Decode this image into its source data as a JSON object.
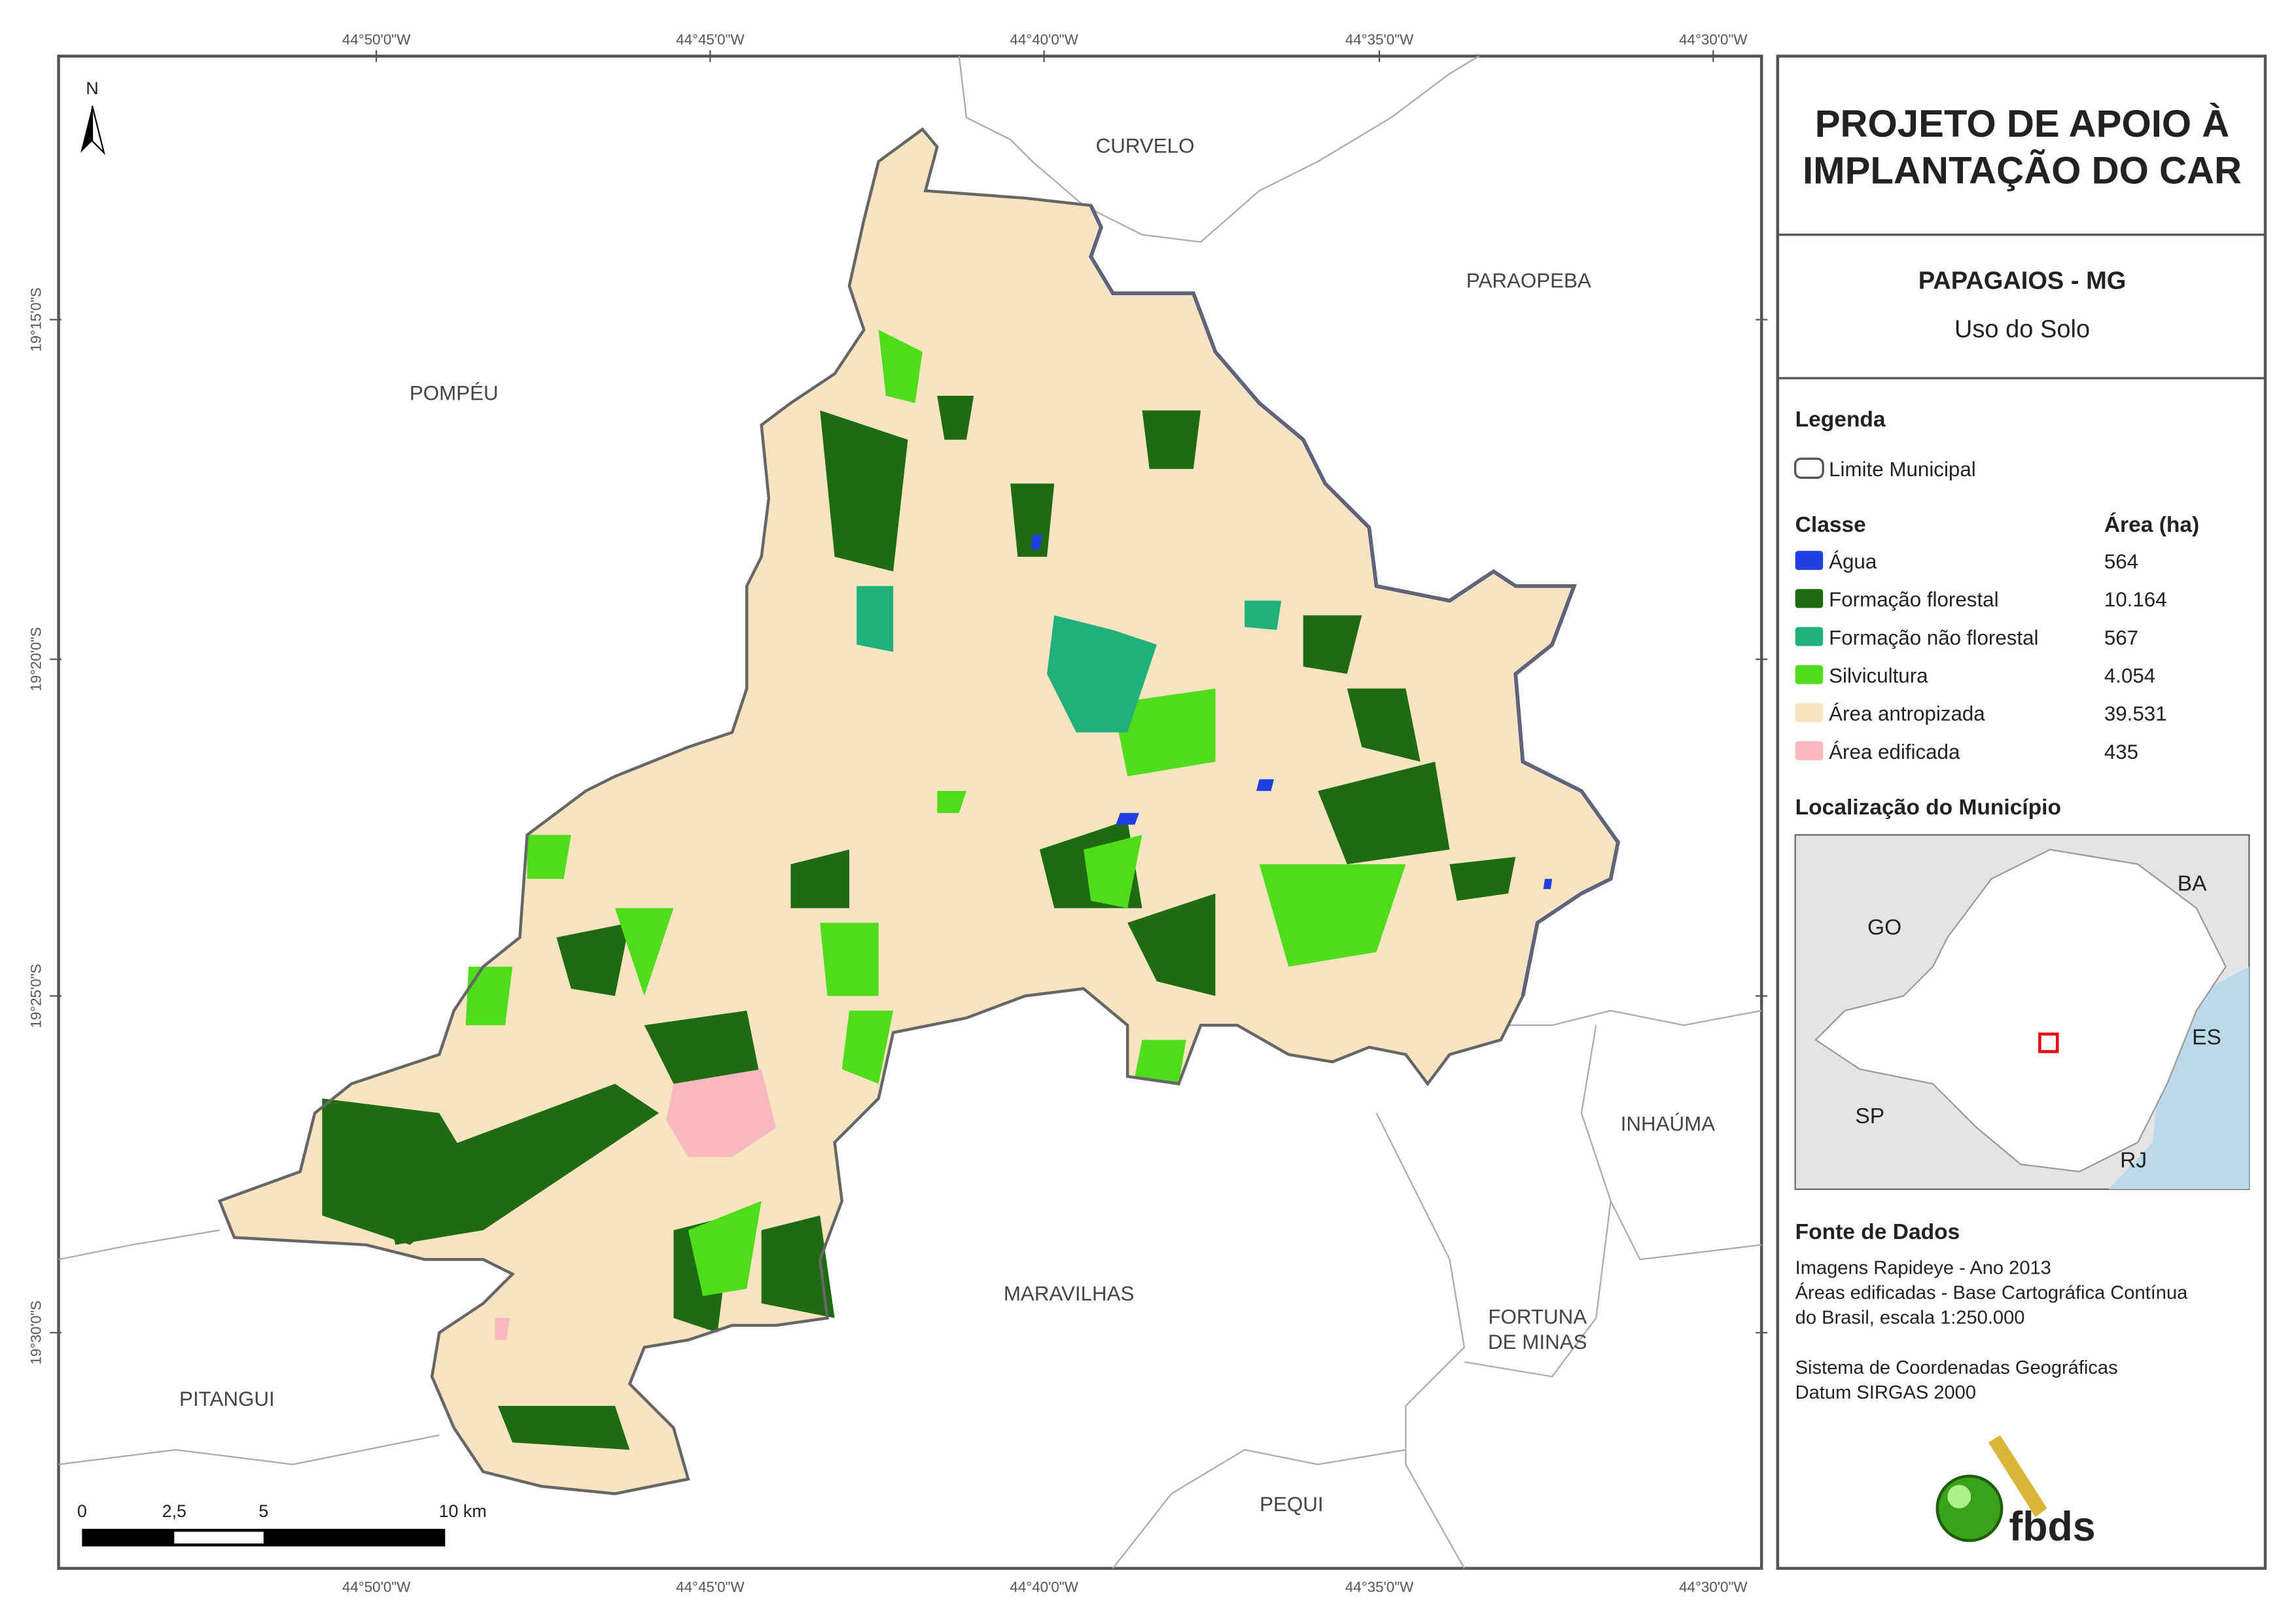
{
  "map": {
    "longitudes": [
      "44°50'0\"W",
      "44°45'0\"W",
      "44°40'0\"W",
      "44°35'0\"W",
      "44°30'0\"W"
    ],
    "latitudes": [
      "19°15'0\"S",
      "19°20'0\"S",
      "19°25'0\"S",
      "19°30'0\"S"
    ],
    "places": [
      "CURVELO",
      "PARAOPEBA",
      "POMPÉU",
      "INHAÚMA",
      "MARAVILHAS",
      "FORTUNA",
      "DE MINAS",
      "PITANGUI",
      "PEQUI"
    ],
    "north": "N",
    "scale": [
      "0",
      "2,5",
      "5",
      "10 km"
    ]
  },
  "panel": {
    "title": [
      "PROJETO DE APOIO À",
      "IMPLANTAÇÃO DO CAR"
    ],
    "municipality": "PAPAGAIOS - MG",
    "subtitle": "Uso do Solo",
    "legend_title": "Legenda",
    "boundary": "Limite Municipal",
    "class_header": "Classe",
    "area_header": "Área (ha)",
    "classes": [
      {
        "name": "Água",
        "color": "#1f3fe0",
        "area": "564"
      },
      {
        "name": "Formação florestal",
        "color": "#1e6b12",
        "area": "10.164"
      },
      {
        "name": "Formação não florestal",
        "color": "#1fb07c",
        "area": "567"
      },
      {
        "name": "Silvicultura",
        "color": "#4fdc1a",
        "area": "4.054"
      },
      {
        "name": "Área antropizada",
        "color": "#f8e4c0",
        "area": "39.531"
      },
      {
        "name": "Área edificada",
        "color": "#f7b8c0",
        "area": "435"
      }
    ],
    "location_title": "Localização do Município",
    "states": [
      "GO",
      "BA",
      "ES",
      "SP",
      "RJ"
    ],
    "sources_title": "Fonte de Dados",
    "sources": [
      "Imagens Rapideye - Ano 2013",
      "Áreas edificadas - Base Cartográfica Contínua",
      "do Brasil, escala 1:250.000",
      "",
      "Sistema de Coordenadas Geográficas",
      "Datum SIRGAS 2000"
    ],
    "logo": "fbds"
  }
}
